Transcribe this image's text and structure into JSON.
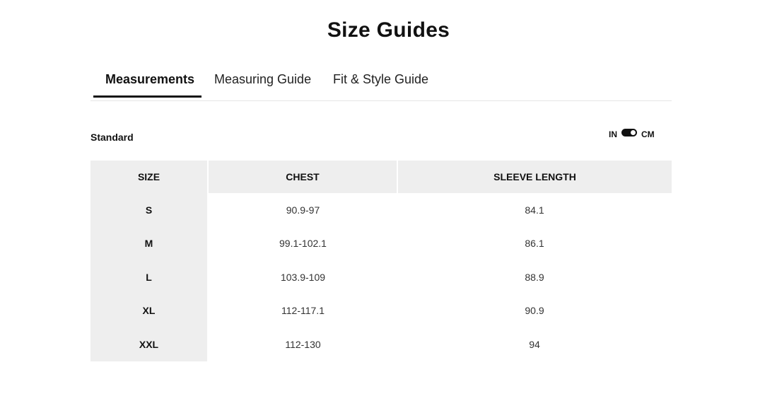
{
  "title": "Size Guides",
  "tabs": [
    {
      "label": "Measurements",
      "active": true
    },
    {
      "label": "Measuring Guide",
      "active": false
    },
    {
      "label": "Fit & Style Guide",
      "active": false
    }
  ],
  "section_label": "Standard",
  "units": {
    "left": "IN",
    "right": "CM",
    "selected": "CM"
  },
  "table": {
    "headers": [
      "SIZE",
      "CHEST",
      "SLEEVE LENGTH"
    ],
    "rows": [
      [
        "S",
        "90.9-97",
        "84.1"
      ],
      [
        "M",
        "99.1-102.1",
        "86.1"
      ],
      [
        "L",
        "103.9-109",
        "88.9"
      ],
      [
        "XL",
        "112-117.1",
        "90.9"
      ],
      [
        "XXL",
        "112-130",
        "94"
      ]
    ]
  }
}
